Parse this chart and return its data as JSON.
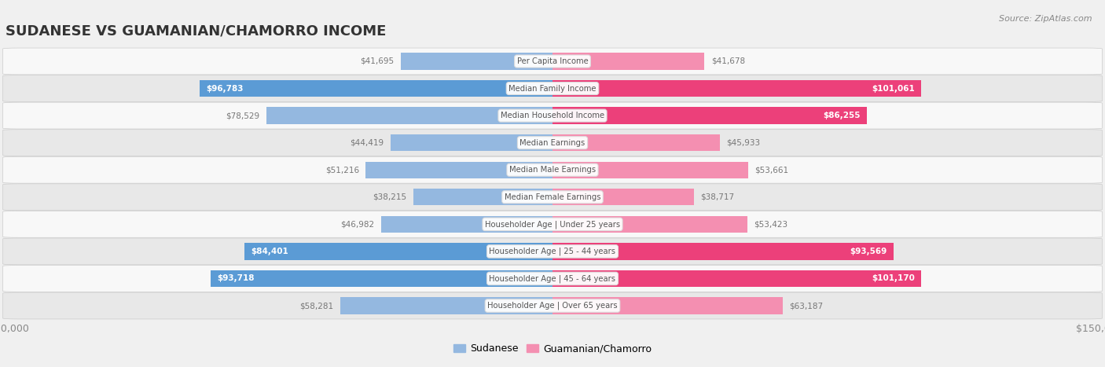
{
  "title": "Sudanese vs Guamanian/Chamorro Income",
  "source": "Source: ZipAtlas.com",
  "categories": [
    "Per Capita Income",
    "Median Family Income",
    "Median Household Income",
    "Median Earnings",
    "Median Male Earnings",
    "Median Female Earnings",
    "Householder Age | Under 25 years",
    "Householder Age | 25 - 44 years",
    "Householder Age | 45 - 64 years",
    "Householder Age | Over 65 years"
  ],
  "sudanese": [
    41695,
    96783,
    78529,
    44419,
    51216,
    38215,
    46982,
    84401,
    93718,
    58281
  ],
  "guamanian": [
    41678,
    101061,
    86255,
    45933,
    53661,
    38717,
    53423,
    93569,
    101170,
    63187
  ],
  "max_val": 150000,
  "blue_color": "#94b8e0",
  "pink_color": "#f48fb1",
  "blue_dark_color": "#5b9bd5",
  "pink_dark_color": "#ec407a",
  "bg_color": "#f0f0f0",
  "row_bg_light": "#f8f8f8",
  "row_bg_mid": "#e8e8e8",
  "label_bg_color": "#ffffff",
  "label_border_color": "#dddddd",
  "text_color_dark": "#555555",
  "text_color_outside": "#777777",
  "text_color_inside_white": "#ffffff",
  "bar_height": 0.62,
  "inside_threshold": 0.56
}
